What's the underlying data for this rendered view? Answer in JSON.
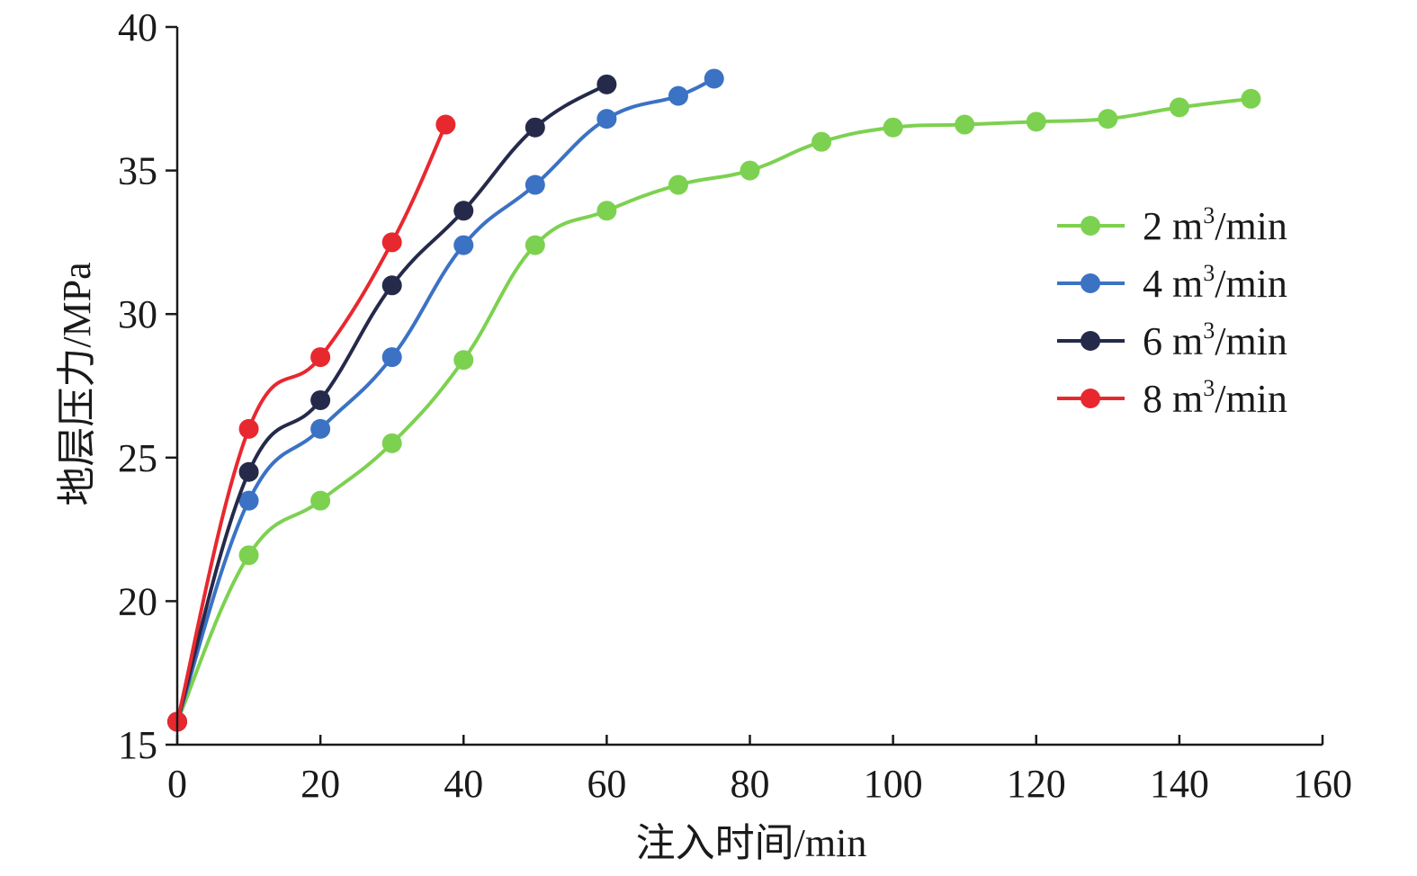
{
  "chart_data": {
    "type": "line",
    "xlabel": "注入时间/min",
    "ylabel": "地层压力/MPa",
    "xlim": [
      0,
      160
    ],
    "ylim": [
      15,
      40
    ],
    "xticks": [
      0,
      20,
      40,
      60,
      80,
      100,
      120,
      140,
      160
    ],
    "yticks": [
      15,
      20,
      25,
      30,
      35,
      40
    ],
    "grid": false,
    "smooth": true,
    "legend_position": "right",
    "series": [
      {
        "name_value": "2 m",
        "name_sup": "3",
        "name_unit": "/min",
        "color": "#7dd150",
        "x": [
          0,
          10,
          20,
          30,
          40,
          50,
          60,
          70,
          80,
          90,
          100,
          110,
          120,
          130,
          140,
          150
        ],
        "y": [
          15.8,
          21.6,
          23.5,
          25.5,
          28.4,
          32.4,
          33.6,
          34.5,
          35.0,
          36.0,
          36.5,
          36.6,
          36.7,
          36.8,
          37.2,
          37.5
        ]
      },
      {
        "name_value": "4 m",
        "name_sup": "3",
        "name_unit": "/min",
        "color": "#3b72c4",
        "x": [
          0,
          10,
          20,
          30,
          40,
          50,
          60,
          70,
          75
        ],
        "y": [
          15.8,
          23.5,
          26.0,
          28.5,
          32.4,
          34.5,
          36.8,
          37.6,
          38.2
        ]
      },
      {
        "name_value": "6 m",
        "name_sup": "3",
        "name_unit": "/min",
        "color": "#252a4a",
        "x": [
          0,
          10,
          20,
          30,
          40,
          50,
          60
        ],
        "y": [
          15.8,
          24.5,
          27.0,
          31.0,
          33.6,
          36.5,
          38.0
        ]
      },
      {
        "name_value": "8 m",
        "name_sup": "3",
        "name_unit": "/min",
        "color": "#e8282f",
        "x": [
          0,
          10,
          20,
          30,
          37.5
        ],
        "y": [
          15.8,
          26.0,
          28.5,
          32.5,
          36.6
        ]
      }
    ]
  }
}
